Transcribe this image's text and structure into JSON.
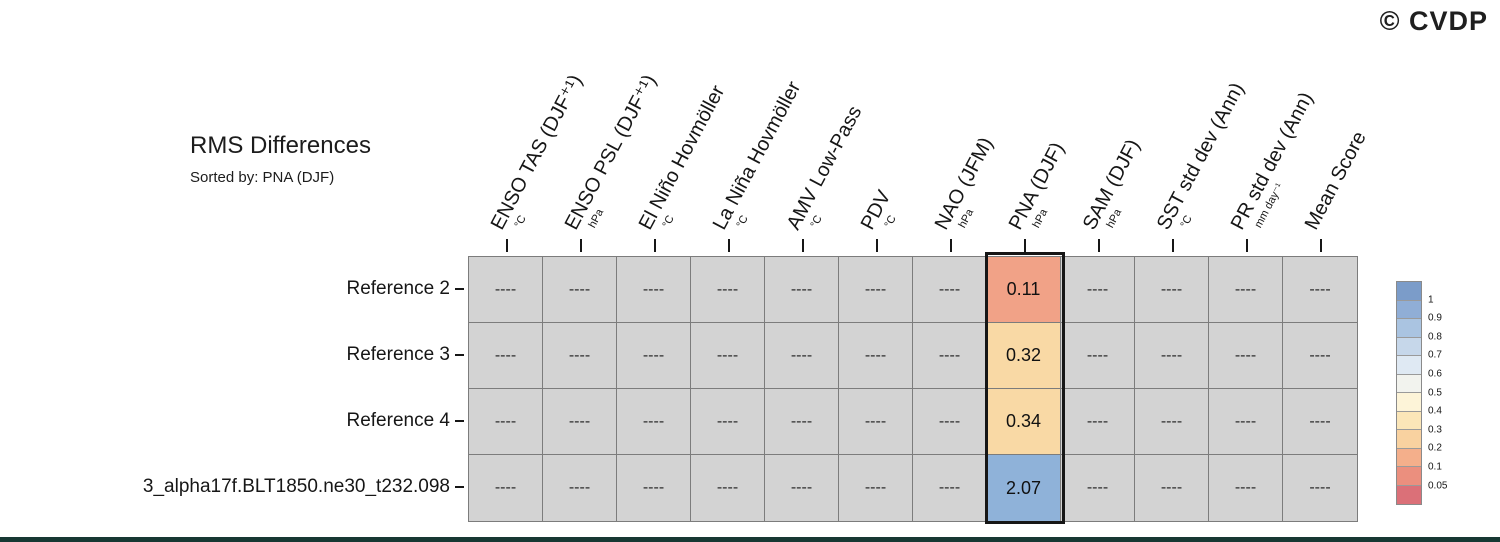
{
  "logo": "© CVDP",
  "header": {
    "title": "RMS Differences",
    "subtitle": "Sorted by: PNA (DJF)"
  },
  "chart_data": {
    "type": "heatmap",
    "title": "RMS Differences",
    "subtitle": "Sorted by: PNA (DJF)",
    "sorted_by": "PNA (DJF)",
    "highlighted_column": "PNA (DJF)",
    "empty_cell_text": "----",
    "columns": [
      {
        "label": "ENSO TAS (DJF⁺¹)",
        "unit": "°C"
      },
      {
        "label": "ENSO PSL (DJF⁺¹)",
        "unit": "hPa"
      },
      {
        "label": "El Niño Hovmöller",
        "unit": "°C"
      },
      {
        "label": "La Niña Hovmöller",
        "unit": "°C"
      },
      {
        "label": "AMV Low-Pass",
        "unit": "°C"
      },
      {
        "label": "PDV",
        "unit": "°C"
      },
      {
        "label": "NAO (JFM)",
        "unit": "hPa"
      },
      {
        "label": "PNA (DJF)",
        "unit": "hPa"
      },
      {
        "label": "SAM (DJF)",
        "unit": "hPa"
      },
      {
        "label": "SST std dev (Ann)",
        "unit": "°C"
      },
      {
        "label": "PR std dev (Ann)",
        "unit": "mm day⁻¹"
      },
      {
        "label": "Mean Score",
        "unit": ""
      }
    ],
    "rows": [
      {
        "label": "Reference 2",
        "values": [
          "----",
          "----",
          "----",
          "----",
          "----",
          "----",
          "----",
          "0.11",
          "----",
          "----",
          "----",
          "----"
        ],
        "cell_colors": [
          "",
          "",
          "",
          "",
          "",
          "",
          "",
          "#f1a287",
          "",
          "",
          "",
          ""
        ]
      },
      {
        "label": "Reference 3",
        "values": [
          "----",
          "----",
          "----",
          "----",
          "----",
          "----",
          "----",
          "0.32",
          "----",
          "----",
          "----",
          "----"
        ],
        "cell_colors": [
          "",
          "",
          "",
          "",
          "",
          "",
          "",
          "#f9d9a5",
          "",
          "",
          "",
          ""
        ]
      },
      {
        "label": "Reference 4",
        "values": [
          "----",
          "----",
          "----",
          "----",
          "----",
          "----",
          "----",
          "0.34",
          "----",
          "----",
          "----",
          "----"
        ],
        "cell_colors": [
          "",
          "",
          "",
          "",
          "",
          "",
          "",
          "#f9d9a5",
          "",
          "",
          "",
          ""
        ]
      },
      {
        "label": "3_alpha17f.BLT1850.ne30_t232.098",
        "values": [
          "----",
          "----",
          "----",
          "----",
          "----",
          "----",
          "----",
          "2.07",
          "----",
          "----",
          "----",
          "----"
        ],
        "cell_colors": [
          "",
          "",
          "",
          "",
          "",
          "",
          "",
          "#8fb2d9",
          "",
          "",
          "",
          ""
        ]
      }
    ],
    "colorbar": {
      "labels": [
        "1",
        "0.9",
        "0.8",
        "0.7",
        "0.6",
        "0.5",
        "0.4",
        "0.3",
        "0.2",
        "0.1",
        "0.05"
      ],
      "segment_colors": [
        "#7b9cc9",
        "#90aed6",
        "#aac4e1",
        "#c6d7ea",
        "#dfe9f3",
        "#f2f3ee",
        "#fdf4d8",
        "#fbe6b8",
        "#f9d2a0",
        "#f4af8b",
        "#eb8f7e",
        "#db7078"
      ]
    },
    "colors": {
      "empty_cell": "#d3d3d3",
      "grid_line": "#7c7c7c",
      "highlight_border": "#161616",
      "footer_bar": "#173833"
    }
  }
}
